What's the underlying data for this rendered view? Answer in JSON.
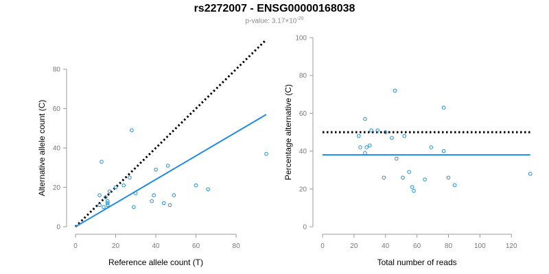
{
  "title": "rs2272007 - ENSG00000168038",
  "subtitle": {
    "prefix": "p-value: 3.17×10",
    "exponent": "-20"
  },
  "colors": {
    "points": "#1f8fd6",
    "fit_line": "#1e88e5",
    "reference_line": "#000000",
    "axes": "#999999"
  },
  "chart_data": [
    {
      "type": "scatter",
      "xlabel": "Reference allele count (T)",
      "ylabel": "Alternative allele count (C)",
      "xlim": [
        0,
        95
      ],
      "ylim": [
        0,
        80
      ],
      "xticks": [
        0,
        20,
        40,
        60,
        80
      ],
      "yticks": [
        0,
        20,
        40,
        60,
        80
      ],
      "grid": false,
      "points": [
        [
          12,
          11
        ],
        [
          12,
          16
        ],
        [
          13,
          33
        ],
        [
          14,
          10
        ],
        [
          15,
          15
        ],
        [
          16,
          11
        ],
        [
          16,
          12
        ],
        [
          16,
          13
        ],
        [
          17,
          18
        ],
        [
          20,
          20
        ],
        [
          24,
          21
        ],
        [
          27,
          25
        ],
        [
          28,
          49
        ],
        [
          29,
          10
        ],
        [
          30,
          17
        ],
        [
          38,
          13
        ],
        [
          39,
          16
        ],
        [
          40,
          29
        ],
        [
          44,
          12
        ],
        [
          46,
          31
        ],
        [
          47,
          11
        ],
        [
          49,
          16
        ],
        [
          60,
          21
        ],
        [
          66,
          19
        ],
        [
          95,
          37
        ]
      ],
      "reference_line": {
        "style": "dotted",
        "from": [
          0,
          0
        ],
        "to": [
          95,
          95
        ]
      },
      "fit_line": {
        "style": "solid",
        "from": [
          0,
          0
        ],
        "to": [
          95,
          57
        ]
      }
    },
    {
      "type": "scatter",
      "xlabel": "Total number of reads",
      "ylabel": "Percentage alternative (C)",
      "xlim": [
        0,
        133
      ],
      "ylim": [
        0,
        100
      ],
      "xticks": [
        0,
        20,
        40,
        60,
        80,
        100,
        120
      ],
      "yticks": [
        0,
        20,
        40,
        60,
        80,
        100
      ],
      "grid": false,
      "points": [
        [
          23,
          48
        ],
        [
          24,
          42
        ],
        [
          27,
          39
        ],
        [
          27,
          57
        ],
        [
          28,
          42
        ],
        [
          30,
          43
        ],
        [
          31,
          51
        ],
        [
          35,
          51
        ],
        [
          39,
          26
        ],
        [
          40,
          50
        ],
        [
          44,
          47
        ],
        [
          46,
          72
        ],
        [
          47,
          36
        ],
        [
          51,
          26
        ],
        [
          52,
          48
        ],
        [
          55,
          29
        ],
        [
          57,
          21
        ],
        [
          58,
          19
        ],
        [
          65,
          25
        ],
        [
          69,
          42
        ],
        [
          77,
          63
        ],
        [
          77,
          40
        ],
        [
          80,
          26
        ],
        [
          84,
          22
        ],
        [
          132,
          28
        ]
      ],
      "reference_line": {
        "style": "dotted",
        "y": 50,
        "x_range": [
          0,
          132
        ]
      },
      "fit_line": {
        "style": "solid",
        "y": 38,
        "x_range": [
          0,
          132
        ]
      }
    }
  ]
}
